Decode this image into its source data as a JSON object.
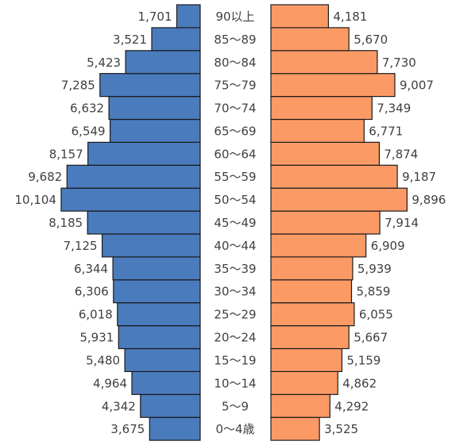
{
  "chart_data": {
    "type": "bar",
    "orientation": "horizontal-population-pyramid",
    "categories": [
      "0〜4歳",
      "5〜9",
      "10〜14",
      "15〜19",
      "20〜24",
      "25〜29",
      "30〜34",
      "35〜39",
      "40〜44",
      "45〜49",
      "50〜54",
      "55〜59",
      "60〜64",
      "65〜69",
      "70〜74",
      "75〜79",
      "80〜84",
      "85〜89",
      "90以上"
    ],
    "series": [
      {
        "values": [
          3675,
          4342,
          4964,
          5480,
          5931,
          6018,
          6306,
          6344,
          7125,
          8185,
          10104,
          9682,
          8157,
          6549,
          6632,
          7285,
          5423,
          3521,
          1701
        ],
        "labels": [
          "3,675",
          "4,342",
          "4,964",
          "5,480",
          "5,931",
          "6,018",
          "6,306",
          "6,344",
          "7,125",
          "8,185",
          "10,104",
          "9,682",
          "8,157",
          "6,549",
          "6,632",
          "7,285",
          "5,423",
          "3,521",
          "1,701"
        ],
        "color": "#4a7bbd",
        "side": "left"
      },
      {
        "values": [
          3525,
          4292,
          4862,
          5159,
          5667,
          6055,
          5859,
          5939,
          6909,
          7914,
          9896,
          9187,
          7874,
          6771,
          7349,
          9007,
          7730,
          5670,
          4181
        ],
        "labels": [
          "3,525",
          "4,292",
          "4,862",
          "5,159",
          "5,667",
          "6,055",
          "5,859",
          "5,939",
          "6,909",
          "7,914",
          "9,896",
          "9,187",
          "7,874",
          "6,771",
          "7,349",
          "9,007",
          "7,730",
          "5,670",
          "4,181"
        ],
        "color": "#fc9a66",
        "side": "right"
      }
    ],
    "xlim": [
      0,
      10104
    ],
    "legend": "none",
    "grid": false
  }
}
